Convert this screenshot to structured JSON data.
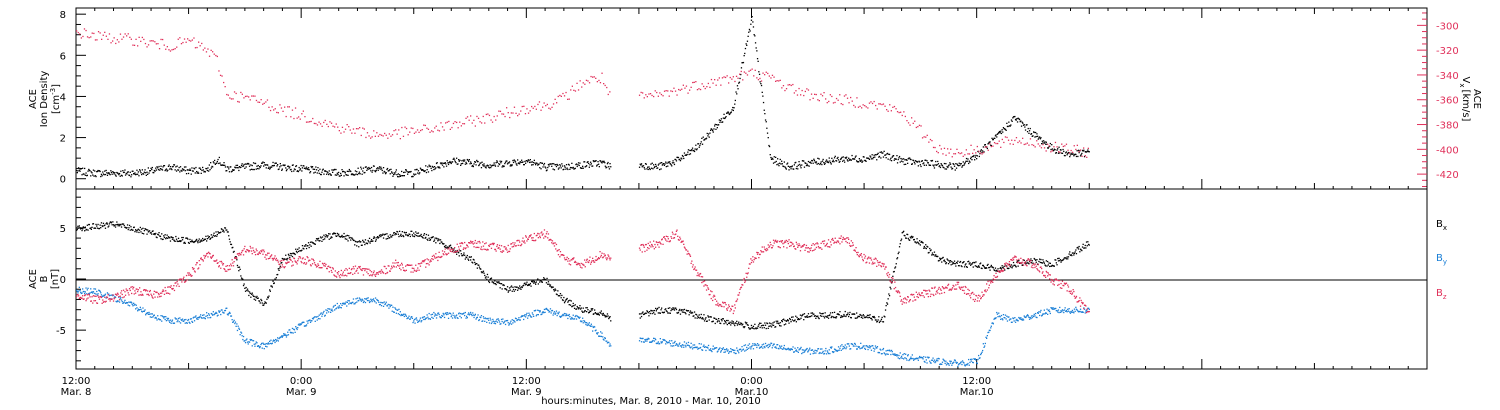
{
  "colors": {
    "black": "#000000",
    "pink": "#e0305a",
    "blue": "#1a7fd6"
  },
  "time_axis": {
    "tick_labels": [
      "12:00",
      "0:00",
      "12:00",
      "0:00",
      "12:00"
    ],
    "date_labels": [
      "Mar. 8",
      "Mar. 9",
      "Mar. 9",
      "Mar.10",
      "Mar.10"
    ],
    "caption": "hours:minutes, Mar.  8, 2010 - Mar. 10, 2010"
  },
  "chart_data": [
    {
      "type": "scatter",
      "panel": "top",
      "ylabel_left_line1": "ACE",
      "ylabel_left_line2": "Ion Density",
      "ylabel_left_units": "[cm",
      "ylabel_left_units_sup": "-3",
      "ylabel_left_units_end": "]",
      "ylim_left": [
        -0.5,
        8.3
      ],
      "yticks_left": [
        "0",
        "2",
        "4",
        "6",
        "8"
      ],
      "ylabel_right_line1": "ACE",
      "ylabel_right_v": "V",
      "ylabel_right_sub": "x",
      "ylabel_right_units": "[km/s]",
      "ylim_right": [
        -432,
        -286
      ],
      "yticks_right": [
        "-300",
        "-320",
        "-340",
        "-360",
        "-380",
        "-400",
        "-420"
      ],
      "x_hours_range": [
        0,
        54
      ],
      "grid": false,
      "series": [
        {
          "color_key": "black",
          "x_hours": [
            0,
            1,
            2,
            3,
            4,
            5,
            6,
            7,
            7.5,
            8,
            9,
            10,
            11,
            12,
            13,
            14,
            15,
            16,
            17,
            18,
            19,
            20,
            21,
            22,
            23,
            24,
            25,
            26,
            27,
            28,
            28.5,
            30,
            31,
            32,
            33,
            34,
            35,
            36,
            37,
            38,
            39,
            40,
            41,
            42,
            43,
            44,
            45,
            46,
            47,
            48,
            49,
            50,
            51,
            52,
            53,
            54
          ],
          "values": [
            0.4,
            0.3,
            0.3,
            0.3,
            0.4,
            0.6,
            0.4,
            0.5,
            1.0,
            0.5,
            0.6,
            0.7,
            0.6,
            0.5,
            0.4,
            0.3,
            0.4,
            0.5,
            0.3,
            0.3,
            0.6,
            0.9,
            0.8,
            0.7,
            0.8,
            0.9,
            0.6,
            0.6,
            0.7,
            0.8,
            0.6,
            0.7,
            0.6,
            0.9,
            1.5,
            2.5,
            3.5,
            7.8,
            1.0,
            0.6,
            0.8,
            0.9,
            1.0,
            1.0,
            1.2,
            0.9,
            0.8,
            0.7,
            0.6,
            1.2,
            2.0,
            3.0,
            2.2,
            1.5,
            1.2,
            1.3
          ]
        }
      ],
      "series_right": [
        {
          "color_key": "pink",
          "x_hours": [
            0,
            1,
            2,
            3,
            4,
            5,
            6,
            7,
            7.5,
            8,
            9,
            10,
            11,
            12,
            13,
            14,
            15,
            16,
            17,
            18,
            19,
            20,
            21,
            22,
            23,
            24,
            25,
            26,
            27,
            28,
            28.5,
            30,
            31,
            32,
            33,
            34,
            35,
            36,
            37,
            38,
            39,
            40,
            41,
            42,
            43,
            44,
            45,
            46,
            47,
            48,
            49,
            50,
            51,
            52,
            53,
            54
          ],
          "values": [
            -305,
            -308,
            -310,
            -311,
            -314,
            -316,
            -312,
            -320,
            -328,
            -355,
            -358,
            -362,
            -368,
            -372,
            -377,
            -382,
            -385,
            -388,
            -387,
            -385,
            -383,
            -380,
            -377,
            -374,
            -370,
            -366,
            -364,
            -358,
            -345,
            -342,
            -360,
            -358,
            -356,
            -352,
            -348,
            -345,
            -342,
            -338,
            -342,
            -350,
            -355,
            -358,
            -360,
            -362,
            -365,
            -370,
            -385,
            -400,
            -402,
            -400,
            -396,
            -392,
            -394,
            -398,
            -400,
            -402
          ]
        }
      ]
    },
    {
      "type": "scatter",
      "panel": "bottom",
      "ylabel_line1": "ACE",
      "ylabel_b": "B",
      "ylabel_units": "[nT]",
      "ylim": [
        -8.8,
        8.8
      ],
      "yticks": [
        "5",
        "0",
        "-5"
      ],
      "x_hours_range": [
        0,
        54
      ],
      "zero_line": true,
      "grid": false,
      "series": [
        {
          "name": "B",
          "name_sub": "x",
          "color_key": "black",
          "x_hours": [
            0,
            1,
            2,
            3,
            4,
            5,
            6,
            7,
            8,
            9,
            10,
            11,
            12,
            13,
            14,
            15,
            16,
            17,
            18,
            19,
            20,
            21,
            22,
            23,
            24,
            25,
            26,
            27,
            28,
            28.5,
            30,
            31,
            32,
            33,
            34,
            35,
            36,
            37,
            38,
            39,
            40,
            41,
            42,
            43,
            44,
            45,
            46,
            47,
            48,
            49,
            50,
            51,
            52,
            53,
            54
          ],
          "values": [
            5,
            5.2,
            5.4,
            5,
            4.5,
            4,
            3.8,
            4,
            5,
            -1,
            -2.5,
            2,
            3,
            4,
            4.5,
            3.5,
            4,
            4.5,
            4.5,
            4,
            3,
            2,
            0,
            -1,
            -0.5,
            0,
            -2,
            -3,
            -3.2,
            -3.8,
            -3.5,
            -3,
            -3,
            -3.5,
            -4,
            -4.2,
            -4.6,
            -4.5,
            -4,
            -3.5,
            -3.5,
            -3.4,
            -3.6,
            -4,
            4.5,
            3.5,
            2,
            1.5,
            1.5,
            1,
            1.5,
            1.8,
            1.5,
            2.5,
            3.6
          ]
        },
        {
          "name": "B",
          "name_sub": "y",
          "color_key": "blue",
          "x_hours": [
            0,
            1,
            2,
            3,
            4,
            5,
            6,
            7,
            8,
            9,
            10,
            11,
            12,
            13,
            14,
            15,
            16,
            17,
            18,
            19,
            20,
            21,
            22,
            23,
            24,
            25,
            26,
            27,
            28,
            28.5,
            30,
            31,
            32,
            33,
            34,
            35,
            36,
            37,
            38,
            39,
            40,
            41,
            42,
            43,
            44,
            45,
            46,
            47,
            48,
            49,
            50,
            51,
            52,
            53,
            54
          ],
          "values": [
            -1,
            -1.2,
            -1.8,
            -2.5,
            -3.5,
            -4,
            -4,
            -3.5,
            -3,
            -6,
            -6.5,
            -5.5,
            -4.5,
            -3.5,
            -2.5,
            -2,
            -2,
            -3,
            -4,
            -3.5,
            -3.5,
            -3.5,
            -4,
            -4.2,
            -3.5,
            -3,
            -3.5,
            -4,
            -5.5,
            -6.5,
            -6,
            -6,
            -6.3,
            -6.5,
            -6.8,
            -7,
            -6.5,
            -6.5,
            -6.8,
            -7,
            -7,
            -6.5,
            -6.5,
            -7,
            -7.5,
            -7.8,
            -8,
            -8.2,
            -8,
            -3.5,
            -4,
            -3.5,
            -3,
            -3,
            -3
          ]
        },
        {
          "name": "B",
          "name_sub": "z",
          "color_key": "pink",
          "x_hours": [
            0,
            1,
            2,
            3,
            4,
            5,
            6,
            7,
            8,
            9,
            10,
            11,
            12,
            13,
            14,
            15,
            16,
            17,
            18,
            19,
            20,
            21,
            22,
            23,
            24,
            25,
            26,
            27,
            28,
            28.5,
            30,
            31,
            32,
            33,
            34,
            35,
            36,
            37,
            38,
            39,
            40,
            41,
            42,
            43,
            44,
            45,
            46,
            47,
            48,
            49,
            50,
            51,
            52,
            53,
            54
          ],
          "values": [
            -1.5,
            -2,
            -1.8,
            -1,
            -1.5,
            -1,
            0.5,
            2.5,
            1,
            3,
            2.5,
            1.5,
            2,
            1.5,
            0.5,
            1,
            0.5,
            1.5,
            1,
            2,
            3,
            3.5,
            3.2,
            3,
            4,
            4.5,
            2,
            1.5,
            2.5,
            2,
            3,
            3.5,
            4.5,
            1,
            -2,
            -3,
            2,
            3.5,
            3.5,
            3,
            3.5,
            4,
            2,
            1.5,
            -2,
            -1.5,
            -1,
            -0.5,
            -2,
            0.5,
            2,
            1.5,
            0,
            -1,
            -3.5
          ]
        }
      ]
    }
  ]
}
